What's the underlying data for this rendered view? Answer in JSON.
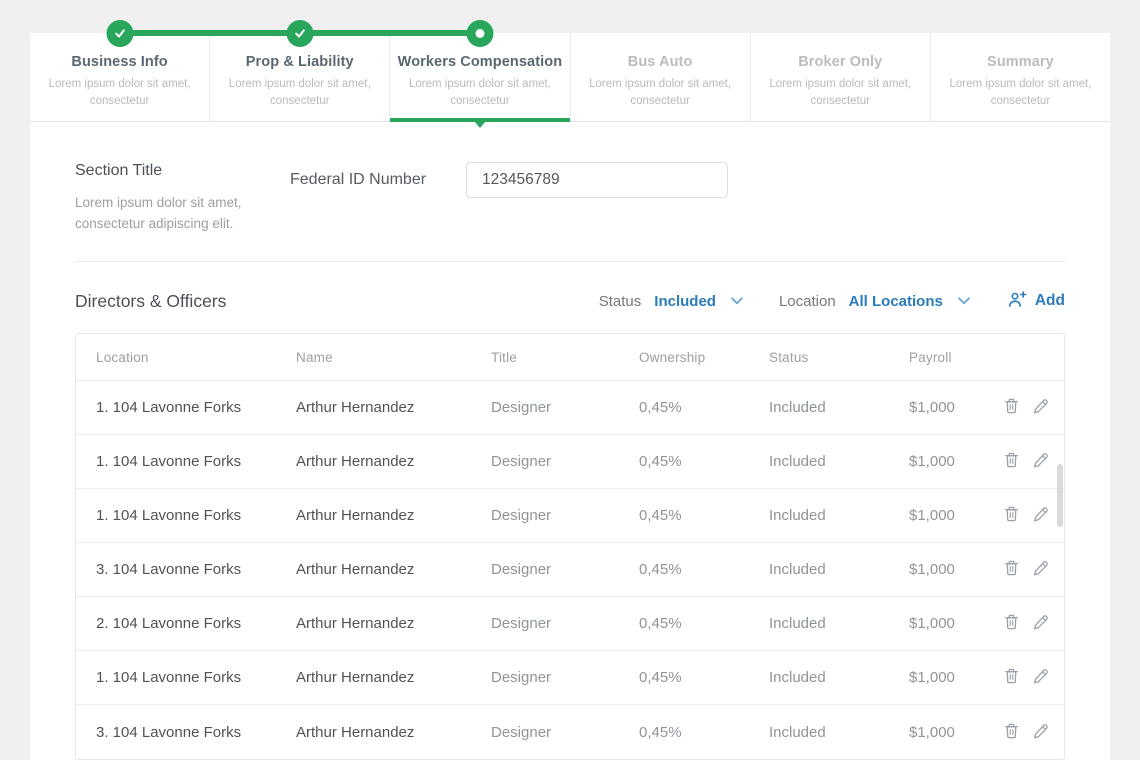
{
  "colors": {
    "green": "#27a65c",
    "blue": "#2b7cba",
    "background": "#f0f0f1"
  },
  "stepper": {
    "steps": [
      {
        "label": "Business Info",
        "sub": "Lorem ipsum dolor sit amet, consectetur",
        "state": "completed"
      },
      {
        "label": "Prop & Liability",
        "sub": "Lorem ipsum dolor sit amet, consectetur",
        "state": "completed"
      },
      {
        "label": "Workers Compensation",
        "sub": "Lorem ipsum dolor sit amet, consectetur",
        "state": "active"
      },
      {
        "label": "Bus Auto",
        "sub": "Lorem ipsum dolor sit amet, consectetur",
        "state": "upcoming"
      },
      {
        "label": "Broker Only",
        "sub": "Lorem ipsum dolor sit amet, consectetur",
        "state": "upcoming"
      },
      {
        "label": "Summary",
        "sub": "Lorem ipsum dolor sit amet, consectetur",
        "state": "upcoming"
      }
    ]
  },
  "form": {
    "section_title": "Section Title",
    "section_desc": "Lorem ipsum dolor sit amet, consectetur adipiscing elit.",
    "federal_id_label": "Federal ID Number",
    "federal_id_value": "123456789"
  },
  "directors": {
    "title": "Directors & Officers",
    "status_label": "Status",
    "status_value": "Included",
    "location_label": "Location",
    "location_value": "All Locations",
    "add_label": "Add"
  },
  "icons": {
    "status_dropdown": "chevron-down",
    "location_dropdown": "chevron-down",
    "add": "person-plus",
    "row_delete": "trash",
    "row_edit": "pencil",
    "step_completed": "check",
    "step_active": "dot"
  },
  "table": {
    "columns": [
      "Location",
      "Name",
      "Title",
      "Ownership",
      "Status",
      "Payroll"
    ],
    "row_fields": [
      "location",
      "name",
      "title",
      "ownership",
      "status",
      "payroll"
    ],
    "rows": [
      {
        "location": "1. 104 Lavonne Forks",
        "name": "Arthur Hernandez",
        "title": "Designer",
        "ownership": "0,45%",
        "status": "Included",
        "payroll": "$1,000"
      },
      {
        "location": "1. 104 Lavonne Forks",
        "name": "Arthur Hernandez",
        "title": "Designer",
        "ownership": "0,45%",
        "status": "Included",
        "payroll": "$1,000"
      },
      {
        "location": "1. 104 Lavonne Forks",
        "name": "Arthur Hernandez",
        "title": "Designer",
        "ownership": "0,45%",
        "status": "Included",
        "payroll": "$1,000"
      },
      {
        "location": "3. 104 Lavonne Forks",
        "name": "Arthur Hernandez",
        "title": "Designer",
        "ownership": "0,45%",
        "status": "Included",
        "payroll": "$1,000"
      },
      {
        "location": "2. 104 Lavonne Forks",
        "name": "Arthur Hernandez",
        "title": "Designer",
        "ownership": "0,45%",
        "status": "Included",
        "payroll": "$1,000"
      },
      {
        "location": "1. 104 Lavonne Forks",
        "name": "Arthur Hernandez",
        "title": "Designer",
        "ownership": "0,45%",
        "status": "Included",
        "payroll": "$1,000"
      },
      {
        "location": "3. 104 Lavonne Forks",
        "name": "Arthur Hernandez",
        "title": "Designer",
        "ownership": "0,45%",
        "status": "Included",
        "payroll": "$1,000"
      }
    ]
  }
}
